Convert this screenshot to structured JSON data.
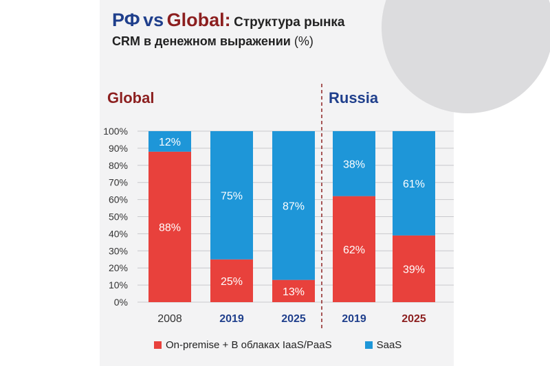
{
  "title": {
    "line1_rf": "РФ",
    "line1_vs": "vs",
    "line1_global": "Global:",
    "line1_rest": "Структура рынка",
    "line2_main": "CRM в денежном выражении",
    "line2_pct": "(%)"
  },
  "colors": {
    "onprem": "#e8413c",
    "saas": "#1e96d8",
    "global_label": "#8c1f1f",
    "russia_label": "#1f3f8c",
    "tick_text": "#333333"
  },
  "chart_data": {
    "type": "bar",
    "stacked": true,
    "groups": [
      "Global",
      "Russia"
    ],
    "categories": [
      "2008",
      "2019",
      "2025",
      "2019",
      "2025"
    ],
    "category_group": [
      "Global",
      "Global",
      "Global",
      "Russia",
      "Russia"
    ],
    "series": [
      {
        "name": "On-premise + В облаках IaaS/PaaS",
        "values": [
          88,
          25,
          13,
          62,
          39
        ],
        "labels": [
          "88%",
          "25%",
          "13%",
          "62%",
          "39%"
        ]
      },
      {
        "name": "SaaS",
        "values": [
          12,
          75,
          87,
          38,
          61
        ],
        "labels": [
          "12%",
          "75%",
          "87%",
          "38%",
          "61%"
        ]
      }
    ],
    "y_ticks": [
      "0%",
      "10%",
      "20%",
      "30%",
      "40%",
      "50%",
      "60%",
      "70%",
      "80%",
      "90%",
      "100%"
    ],
    "ylim": [
      0,
      100
    ],
    "grid": true,
    "legend_position": "bottom"
  },
  "legend": {
    "onprem": "On-premise + В облаках IaaS/PaaS",
    "saas": "SaaS"
  }
}
